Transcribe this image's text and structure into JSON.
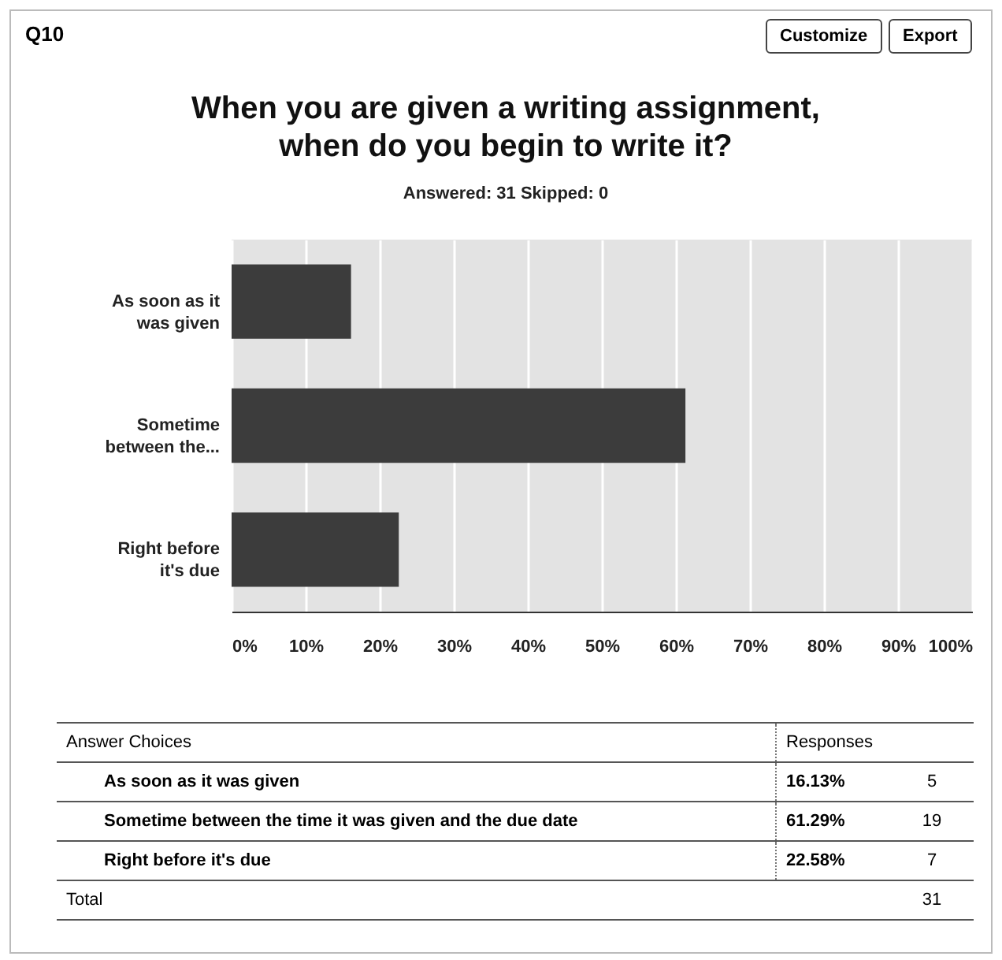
{
  "chart_data": {
    "type": "bar",
    "orientation": "horizontal",
    "title": "When you are given a writing assignment, when do you begin to write it?",
    "subtitle": "Answered: 31    Skipped: 0",
    "categories": [
      "As soon as it was given",
      "Sometime between the...",
      "Right before it's due"
    ],
    "values": [
      16.13,
      61.29,
      22.58
    ],
    "color": "#3c3c3c",
    "xlim": [
      0,
      100
    ],
    "xticks": [
      {
        "value": 0,
        "label": "0%"
      },
      {
        "value": 10,
        "label": "10%"
      },
      {
        "value": 20,
        "label": "20%"
      },
      {
        "value": 30,
        "label": "30%"
      },
      {
        "value": 40,
        "label": "40%"
      },
      {
        "value": 50,
        "label": "50%"
      },
      {
        "value": 60,
        "label": "60%"
      },
      {
        "value": 70,
        "label": "70%"
      },
      {
        "value": 80,
        "label": "80%"
      },
      {
        "value": 90,
        "label": "90%"
      },
      {
        "value": 100,
        "label": "100%"
      }
    ],
    "grid": "x",
    "annotations": [
      "Q10",
      "Customize",
      "Export",
      "Answer Choices",
      "Responses",
      "As soon as it was given",
      "Sometime between the time it was given and the due date",
      "Right before it's due",
      "16.13%",
      "61.29%",
      "22.58%",
      "5",
      "19",
      "7",
      "Total",
      "31"
    ]
  }
}
